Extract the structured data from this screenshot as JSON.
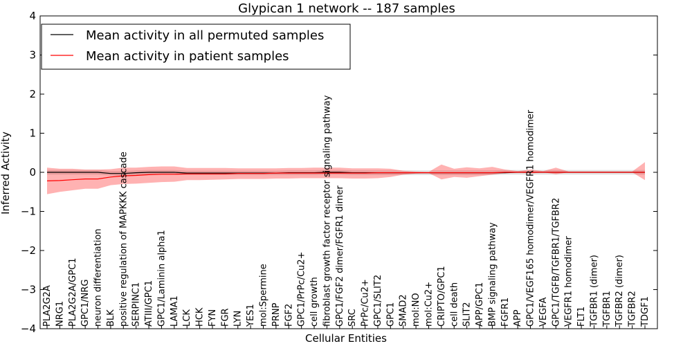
{
  "chart_data": {
    "type": "line",
    "title": "Glypican 1 network -- 187 samples",
    "xlabel": "Cellular Entities",
    "ylabel": "Inferred Activity",
    "ylim": [
      -4,
      4
    ],
    "yticks": [
      "−4",
      "−3",
      "−2",
      "−1",
      "0",
      "1",
      "2",
      "3",
      "4"
    ],
    "grid": false,
    "legend_position": "top-left",
    "categories": [
      "PLA2G2A",
      "NRG1",
      "PLA2G2A/GPC1",
      "GPC1/NRG",
      "neuron differentiation",
      "BLK",
      "positive regulation of MAPKKK cascade",
      "SERPINC1",
      "ATIII/GPC1",
      "GPC1/Laminin alpha1",
      "LAMA1",
      "LCK",
      "HCK",
      "FYN",
      "FGR",
      "LYN",
      "YES1",
      "mol:Spermine",
      "PRNP",
      "FGF2",
      "GPC1/PrPc/Cu2+",
      "cell growth",
      "fibroblast growth factor receptor signaling pathway",
      "GPC1/FGF2 dimer/FGFR1 dimer",
      "SRC",
      "PrPc/Cu2+",
      "GPC1/SLIT2",
      "GPC1",
      "SMAD2",
      "mol:NO",
      "mol:Cu2+",
      "CRIPTO/GPC1",
      "cell death",
      "SLIT2",
      "APP/GPC1",
      "BMP signaling pathway",
      "FGFR1",
      "APP",
      "GPC1/VEGF165 homodimer/VEGFR1 homodimer",
      "VEGFA",
      "GPC1/TGFB/TGFBR1/TGFBR2",
      "VEGFR1 homodimer",
      "FLT1",
      "TGFBR1 (dimer)",
      "TGFBR1",
      "TGFBR2 (dimer)",
      "TGFBR2",
      "TDGF1"
    ],
    "series": [
      {
        "name": "Mean activity in all permuted samples",
        "color": "#000000",
        "values": [
          0.0,
          0.0,
          0.0,
          0.0,
          0.0,
          -0.03,
          -0.03,
          -0.01,
          0.0,
          0.0,
          0.0,
          -0.02,
          -0.02,
          -0.02,
          -0.02,
          -0.02,
          -0.02,
          -0.02,
          -0.02,
          -0.01,
          -0.01,
          -0.01,
          0.0,
          0.0,
          -0.01,
          -0.01,
          -0.01,
          -0.01,
          -0.01,
          -0.01,
          -0.01,
          -0.01,
          -0.01,
          -0.01,
          -0.01,
          -0.01,
          -0.01,
          0.0,
          0.0,
          0.0,
          0.0,
          0.0,
          0.0,
          0.0,
          0.0,
          0.0,
          0.0,
          0.0
        ],
        "band_lower": [
          -0.06,
          -0.06,
          -0.06,
          -0.06,
          -0.06,
          -0.08,
          -0.09,
          -0.07,
          -0.06,
          -0.06,
          -0.06,
          -0.07,
          -0.07,
          -0.07,
          -0.07,
          -0.07,
          -0.07,
          -0.07,
          -0.07,
          -0.07,
          -0.07,
          -0.07,
          -0.06,
          -0.06,
          -0.07,
          -0.07,
          -0.07,
          -0.07,
          -0.07,
          -0.07,
          -0.07,
          -0.07,
          -0.07,
          -0.07,
          -0.07,
          -0.07,
          -0.06,
          -0.06,
          -0.06,
          -0.06,
          -0.06,
          -0.06,
          -0.06,
          -0.06,
          -0.06,
          -0.06,
          -0.06,
          -0.06
        ],
        "band_upper": [
          0.06,
          0.06,
          0.06,
          0.06,
          0.06,
          0.03,
          0.03,
          0.05,
          0.06,
          0.06,
          0.06,
          0.04,
          0.04,
          0.04,
          0.04,
          0.04,
          0.04,
          0.04,
          0.04,
          0.05,
          0.05,
          0.05,
          0.06,
          0.06,
          0.05,
          0.05,
          0.05,
          0.05,
          0.05,
          0.05,
          0.05,
          0.05,
          0.05,
          0.05,
          0.05,
          0.05,
          0.06,
          0.06,
          0.06,
          0.06,
          0.06,
          0.06,
          0.06,
          0.06,
          0.06,
          0.06,
          0.06,
          0.06
        ]
      },
      {
        "name": "Mean activity in patient samples",
        "color": "#ff0000",
        "values": [
          -0.22,
          -0.21,
          -0.19,
          -0.17,
          -0.17,
          -0.12,
          -0.09,
          -0.08,
          -0.06,
          -0.05,
          -0.05,
          -0.04,
          -0.04,
          -0.04,
          -0.04,
          -0.03,
          -0.03,
          -0.03,
          -0.02,
          -0.02,
          -0.02,
          -0.02,
          -0.02,
          -0.02,
          -0.02,
          -0.02,
          -0.01,
          -0.01,
          -0.01,
          -0.01,
          -0.01,
          -0.01,
          -0.01,
          -0.01,
          -0.01,
          -0.01,
          0.0,
          0.0,
          0.0,
          0.0,
          0.0,
          0.0,
          0.0,
          0.0,
          0.0,
          0.0,
          0.0,
          0.0
        ],
        "band_lower": [
          -0.56,
          -0.5,
          -0.46,
          -0.42,
          -0.42,
          -0.33,
          -0.3,
          -0.29,
          -0.27,
          -0.25,
          -0.24,
          -0.2,
          -0.2,
          -0.19,
          -0.18,
          -0.17,
          -0.17,
          -0.17,
          -0.16,
          -0.16,
          -0.15,
          -0.15,
          -0.15,
          -0.15,
          -0.16,
          -0.16,
          -0.15,
          -0.12,
          -0.06,
          -0.03,
          -0.02,
          -0.18,
          -0.12,
          -0.14,
          -0.1,
          -0.06,
          -0.02,
          0.0,
          -0.03,
          0.0,
          -0.05,
          0.0,
          0.0,
          0.0,
          0.0,
          0.0,
          0.0,
          -0.2
        ],
        "band_upper": [
          0.12,
          0.09,
          0.09,
          0.07,
          0.07,
          0.08,
          0.12,
          0.12,
          0.14,
          0.15,
          0.15,
          0.11,
          0.11,
          0.11,
          0.11,
          0.1,
          0.1,
          0.1,
          0.1,
          0.11,
          0.11,
          0.12,
          0.12,
          0.12,
          0.1,
          0.1,
          0.1,
          0.09,
          0.04,
          0.02,
          0.01,
          0.2,
          0.09,
          0.13,
          0.1,
          0.14,
          0.07,
          0.03,
          0.07,
          0.03,
          0.12,
          0.02,
          0.02,
          0.02,
          0.02,
          0.02,
          0.02,
          0.26
        ]
      }
    ]
  }
}
